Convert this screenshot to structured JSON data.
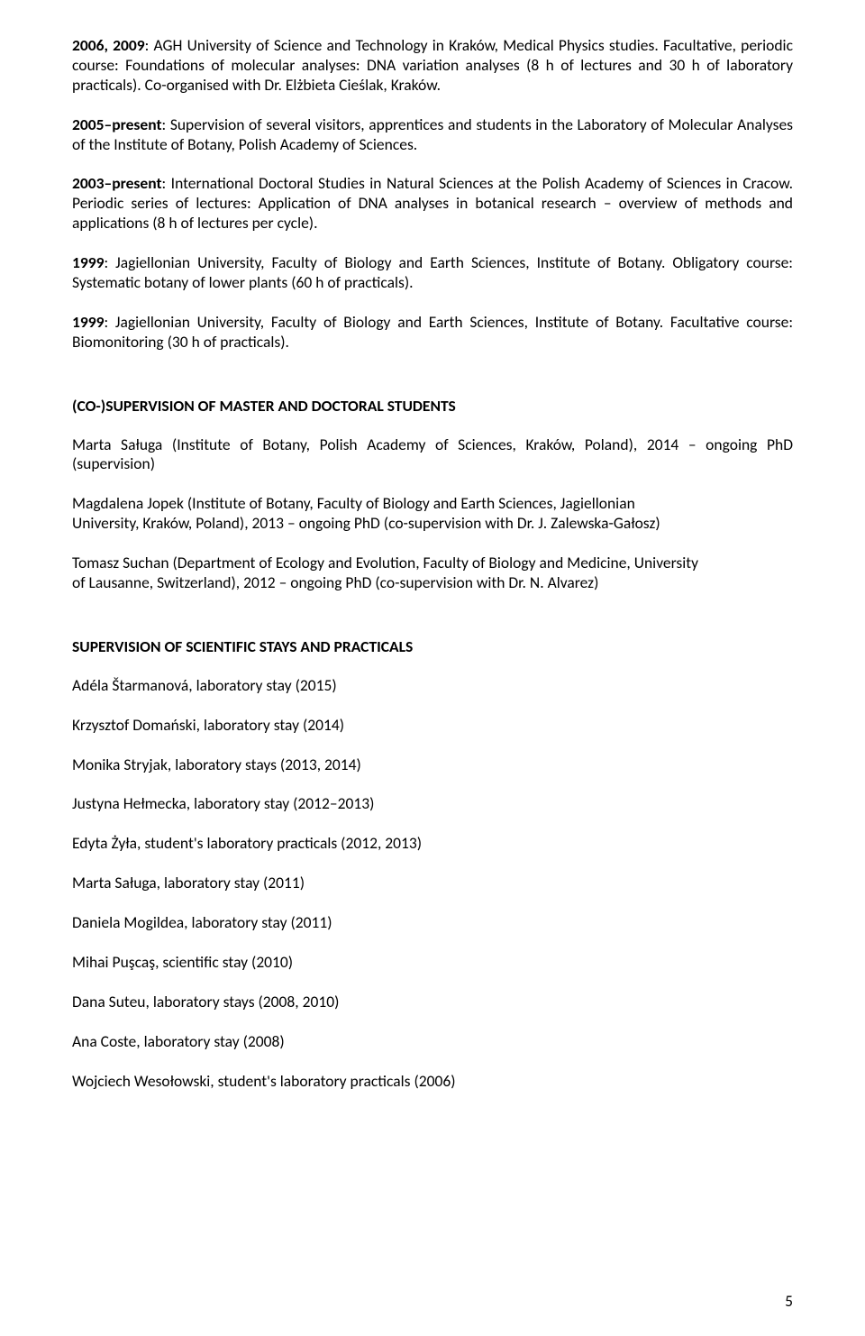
{
  "doc": {
    "font_family": "Calibri",
    "body_font_size_pt": 11,
    "text_color": "#000000",
    "background_color": "#ffffff",
    "page_number": "5"
  },
  "p1": {
    "lead_bold": "2006, 2009",
    "rest": ": AGH University of Science and Technology in Kraków, Medical Physics studies. Facultative, periodic course: Foundations of molecular analyses: DNA variation analyses (8 h of lectures and 30 h of laboratory practicals). Co-organised with Dr. Elżbieta Cieślak, Kraków."
  },
  "p2": {
    "lead_bold": "2005–present",
    "rest": ": Supervision of several visitors, apprentices and students in the Laboratory of Molecular Analyses of the Institute of Botany, Polish Academy of Sciences."
  },
  "p3": {
    "lead_bold": "2003–present",
    "rest": ": International Doctoral Studies in Natural Sciences at the Polish Academy of Sciences in Cracow. Periodic series of lectures: Application of DNA analyses in botanical research – overview of methods and applications (8 h of lectures per cycle)."
  },
  "p4": {
    "lead_bold": "1999",
    "rest": ": Jagiellonian University, Faculty of Biology and Earth Sciences, Institute of Botany. Obligatory course: Systematic botany of lower plants (60 h of practicals)."
  },
  "p5": {
    "lead_bold": "1999",
    "rest": ": Jagiellonian University, Faculty of Biology and Earth Sciences, Institute of Botany. Facultative course: Biomonitoring (30 h of practicals)."
  },
  "h1": "(CO-)SUPERVISION OF MASTER AND DOCTORAL STUDENTS",
  "s1": "Marta Saługa (Institute of Botany, Polish Academy of Sciences, Kraków, Poland), 2014 – ongoing PhD (supervision)",
  "s2a": "Magdalena Jopek (Institute of Botany, Faculty of Biology and Earth Sciences, Jagiellonian",
  "s2b": "University, Kraków, Poland), 2013 – ongoing PhD (co-supervision with Dr. J. Zalewska-Gałosz)",
  "s3a": "Tomasz Suchan (Department of Ecology and Evolution, Faculty of Biology and Medicine, University",
  "s3b": "of Lausanne, Switzerland), 2012 – ongoing PhD (co-supervision with Dr. N. Alvarez)",
  "h2": "SUPERVISION OF SCIENTIFIC STAYS AND PRACTICALS",
  "stays": {
    "i0": "Adéla Štarmanová, laboratory stay (2015)",
    "i1": "Krzysztof Domański, laboratory stay (2014)",
    "i2": "Monika Stryjak, laboratory stays (2013, 2014)",
    "i3": "Justyna Hełmecka, laboratory stay (2012–2013)",
    "i4": "Edyta Żyła, student's laboratory practicals (2012, 2013)",
    "i5": "Marta Saługa, laboratory stay (2011)",
    "i6": "Daniela Mogildea, laboratory stay (2011)",
    "i7": "Mihai Puşcaş, scientific stay (2010)",
    "i8": "Dana Suteu, laboratory stays (2008, 2010)",
    "i9": "Ana Coste, laboratory stay (2008)",
    "i10": "Wojciech Wesołowski, student's laboratory practicals (2006)"
  }
}
